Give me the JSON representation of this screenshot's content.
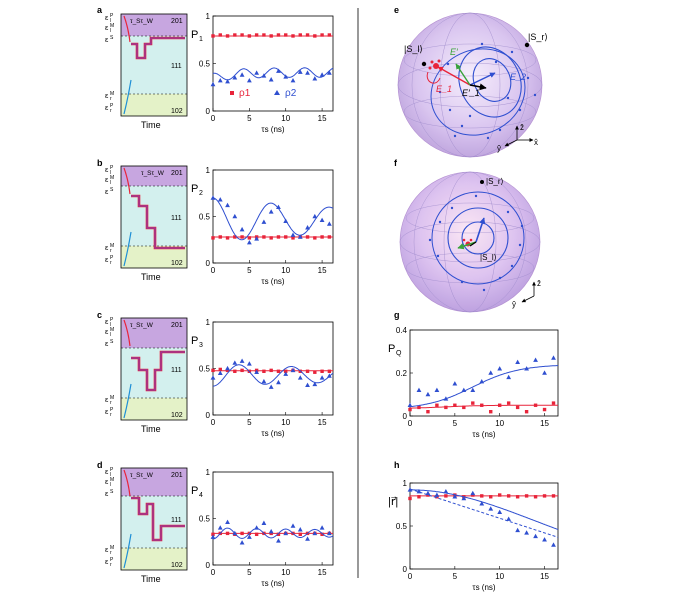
{
  "figure": {
    "panel_labels": {
      "a": "a",
      "b": "b",
      "c": "c",
      "d": "d",
      "e": "e",
      "f": "f",
      "g": "g",
      "h": "h"
    },
    "energy_levels": {
      "eps_l_P": "ε",
      "eps_l_M": "ε",
      "eps_S": "ε",
      "eps_r_M": "ε",
      "eps_r_P": "ε",
      "sub_l": "l",
      "sub_r": "r",
      "sup_P": "P",
      "sup_M": "M",
      "sup_S": "S"
    },
    "state_labels": [
      "201",
      "111",
      "102"
    ],
    "tau_labels": "τ_Sτ_W",
    "time_label": "Time",
    "colors": {
      "red": "#e8243a",
      "blue": "#2f4fd0",
      "purple": "#c7a6e0",
      "teal": "#d3f0ee",
      "green": "#e4f2c8",
      "curve_purple": "#8a3aa8"
    },
    "bloch": {
      "e_labels": {
        "Si": "|S_l⟩",
        "Sr": "|S_r⟩",
        "E1": "E_1",
        "E2": "E_2",
        "E1p": "E′_1",
        "Ep": "E′"
      },
      "axes": {
        "x": "x̂",
        "y": "ŷ",
        "z": "ẑ"
      },
      "f_labels": {
        "Sr": "|S_r⟩",
        "Si": "|S_l⟩"
      }
    }
  },
  "chart_data": [
    {
      "id": "a",
      "type": "scatter",
      "ylabel": "P",
      "ysub": "1",
      "xlabel": "τ_s (ns)",
      "xlim": [
        0,
        16.5
      ],
      "ylim": [
        0,
        1
      ],
      "yticks": [
        0,
        0.5,
        1
      ],
      "xticks": [
        0,
        5,
        10,
        15
      ],
      "series": [
        {
          "name": "ρ1",
          "marker": "square",
          "color": "#e8243a",
          "x": [
            0,
            1,
            2,
            3,
            4,
            5,
            6,
            7,
            8,
            9,
            10,
            11,
            12,
            13,
            14,
            15,
            16
          ],
          "values": [
            0.79,
            0.8,
            0.79,
            0.8,
            0.8,
            0.79,
            0.8,
            0.8,
            0.79,
            0.8,
            0.8,
            0.79,
            0.8,
            0.8,
            0.79,
            0.8,
            0.8
          ],
          "fit": {
            "kind": "const",
            "value": 0.79
          }
        },
        {
          "name": "ρ2",
          "marker": "triangle",
          "color": "#2f4fd0",
          "x": [
            0,
            1,
            2,
            3,
            4,
            5,
            6,
            7,
            8,
            9,
            10,
            11,
            12,
            13,
            14,
            15,
            16
          ],
          "values": [
            0.28,
            0.32,
            0.31,
            0.35,
            0.38,
            0.32,
            0.4,
            0.37,
            0.33,
            0.42,
            0.36,
            0.32,
            0.41,
            0.4,
            0.34,
            0.38,
            0.4
          ],
          "fit": {
            "kind": "osc",
            "a": 0.37,
            "b": 0.05,
            "period": 4.2,
            "phase": 0.0,
            "rise": 0.06,
            "tau": 2.5
          }
        }
      ],
      "legend": [
        "ρ1",
        "ρ2"
      ]
    },
    {
      "id": "b",
      "type": "scatter",
      "ylabel": "P",
      "ysub": "2",
      "xlabel": "τ_s (ns)",
      "xlim": [
        0,
        16.5
      ],
      "ylim": [
        0,
        1
      ],
      "yticks": [
        0,
        0.5,
        1
      ],
      "xticks": [
        0,
        5,
        10,
        15
      ],
      "series": [
        {
          "name": "ρ1",
          "marker": "square",
          "color": "#e8243a",
          "x": [
            0,
            1,
            2,
            3,
            4,
            5,
            6,
            7,
            8,
            9,
            10,
            11,
            12,
            13,
            14,
            15,
            16
          ],
          "values": [
            0.27,
            0.28,
            0.27,
            0.28,
            0.28,
            0.27,
            0.28,
            0.28,
            0.27,
            0.28,
            0.28,
            0.27,
            0.28,
            0.28,
            0.27,
            0.28,
            0.28
          ],
          "fit": {
            "kind": "const",
            "value": 0.28
          }
        },
        {
          "name": "ρ2",
          "marker": "triangle",
          "color": "#2f4fd0",
          "x": [
            0,
            1,
            2,
            3,
            4,
            5,
            6,
            7,
            8,
            9,
            10,
            11,
            12,
            13,
            14,
            15,
            16
          ],
          "values": [
            0.7,
            0.68,
            0.62,
            0.5,
            0.36,
            0.22,
            0.26,
            0.44,
            0.55,
            0.6,
            0.45,
            0.3,
            0.28,
            0.38,
            0.5,
            0.46,
            0.42
          ],
          "fit": {
            "kind": "damped",
            "mean": 0.46,
            "amp": 0.24,
            "period": 8.0,
            "decay": 30,
            "phase": 0.0
          }
        }
      ]
    },
    {
      "id": "c",
      "type": "scatter",
      "ylabel": "P",
      "ysub": "3",
      "xlabel": "τ_s (ns)",
      "xlim": [
        0,
        16.5
      ],
      "ylim": [
        0,
        1
      ],
      "yticks": [
        0,
        0.5,
        1
      ],
      "xticks": [
        0,
        5,
        10,
        15
      ],
      "series": [
        {
          "name": "ρ1",
          "marker": "square",
          "color": "#e8243a",
          "x": [
            0,
            1,
            2,
            3,
            4,
            5,
            6,
            7,
            8,
            9,
            10,
            11,
            12,
            13,
            14,
            15,
            16
          ],
          "values": [
            0.48,
            0.49,
            0.48,
            0.47,
            0.48,
            0.47,
            0.48,
            0.47,
            0.48,
            0.47,
            0.47,
            0.48,
            0.47,
            0.47,
            0.46,
            0.47,
            0.47
          ],
          "fit": {
            "kind": "const",
            "value": 0.475
          }
        },
        {
          "name": "ρ2",
          "marker": "triangle",
          "color": "#2f4fd0",
          "x": [
            0,
            1,
            2,
            3,
            4,
            5,
            6,
            7,
            8,
            9,
            10,
            11,
            12,
            13,
            14,
            15,
            16
          ],
          "values": [
            0.4,
            0.45,
            0.5,
            0.56,
            0.58,
            0.55,
            0.46,
            0.36,
            0.3,
            0.35,
            0.44,
            0.48,
            0.4,
            0.32,
            0.33,
            0.4,
            0.42
          ],
          "fit": {
            "kind": "damped",
            "mean": 0.43,
            "amp": -0.12,
            "period": 7.2,
            "decay": 40,
            "phase": 0.0
          }
        }
      ]
    },
    {
      "id": "d",
      "type": "scatter",
      "ylabel": "P",
      "ysub": "4",
      "xlabel": "τ_s (ns)",
      "xlim": [
        0,
        16.5
      ],
      "ylim": [
        0,
        1
      ],
      "yticks": [
        0,
        0.5,
        1
      ],
      "xticks": [
        0,
        5,
        10,
        15
      ],
      "series": [
        {
          "name": "ρ1",
          "marker": "square",
          "color": "#e8243a",
          "x": [
            0,
            1,
            2,
            3,
            4,
            5,
            6,
            7,
            8,
            9,
            10,
            11,
            12,
            13,
            14,
            15,
            16
          ],
          "values": [
            0.33,
            0.34,
            0.34,
            0.33,
            0.34,
            0.34,
            0.33,
            0.34,
            0.34,
            0.33,
            0.34,
            0.34,
            0.33,
            0.34,
            0.34,
            0.33,
            0.34
          ],
          "fit": {
            "kind": "const",
            "value": 0.34
          }
        },
        {
          "name": "ρ2",
          "marker": "triangle",
          "color": "#2f4fd0",
          "x": [
            0,
            1,
            2,
            3,
            4,
            5,
            6,
            7,
            8,
            9,
            10,
            11,
            12,
            13,
            14,
            15,
            16
          ],
          "values": [
            0.3,
            0.4,
            0.46,
            0.34,
            0.24,
            0.3,
            0.4,
            0.45,
            0.36,
            0.26,
            0.34,
            0.42,
            0.38,
            0.28,
            0.34,
            0.4,
            0.34
          ],
          "fit": {
            "kind": "damped",
            "mean": 0.34,
            "amp": -0.06,
            "period": 4.0,
            "decay": 40,
            "phase": 0.0
          }
        }
      ]
    },
    {
      "id": "g",
      "type": "scatter",
      "ylabel": "P",
      "ysub": "Q",
      "xlabel": "τ_s (ns)",
      "xlim": [
        0,
        16.5
      ],
      "ylim": [
        0,
        0.4
      ],
      "yticks": [
        0,
        0.2,
        0.4
      ],
      "xticks": [
        0,
        5,
        10,
        15
      ],
      "series": [
        {
          "name": "ρ1",
          "marker": "square",
          "color": "#e8243a",
          "x": [
            0,
            1,
            2,
            3,
            4,
            5,
            6,
            7,
            8,
            9,
            10,
            11,
            12,
            13,
            14,
            15,
            16
          ],
          "values": [
            0.03,
            0.04,
            0.02,
            0.05,
            0.04,
            0.05,
            0.04,
            0.06,
            0.05,
            0.02,
            0.05,
            0.06,
            0.04,
            0.02,
            0.05,
            0.03,
            0.06
          ],
          "fit": {
            "kind": "sat",
            "base": 0.035,
            "top": 0.05,
            "x0": 4,
            "w": 2
          }
        },
        {
          "name": "ρ2",
          "marker": "triangle",
          "color": "#2f4fd0",
          "x": [
            0,
            1,
            2,
            3,
            4,
            5,
            6,
            7,
            8,
            9,
            10,
            11,
            12,
            13,
            14,
            15,
            16
          ],
          "values": [
            0.05,
            0.12,
            0.1,
            0.12,
            0.08,
            0.15,
            0.12,
            0.12,
            0.16,
            0.2,
            0.22,
            0.18,
            0.25,
            0.22,
            0.26,
            0.2,
            0.27
          ],
          "fit": {
            "kind": "sat",
            "base": 0.03,
            "top": 0.24,
            "x0": 7,
            "w": 2.6
          }
        }
      ]
    },
    {
      "id": "h",
      "type": "scatter",
      "ylabel": "|r⃗|",
      "ysub": "",
      "xlabel": "τ_s (ns)",
      "xlim": [
        0,
        16.5
      ],
      "ylim": [
        0,
        1
      ],
      "yticks": [
        0,
        0.5,
        1
      ],
      "xticks": [
        0,
        5,
        10,
        15
      ],
      "series": [
        {
          "name": "ρ1",
          "marker": "square",
          "color": "#e8243a",
          "x": [
            0,
            1,
            2,
            3,
            4,
            5,
            6,
            7,
            8,
            9,
            10,
            11,
            12,
            13,
            14,
            15,
            16
          ],
          "values": [
            0.82,
            0.84,
            0.86,
            0.84,
            0.85,
            0.86,
            0.84,
            0.86,
            0.85,
            0.84,
            0.86,
            0.85,
            0.84,
            0.85,
            0.84,
            0.85,
            0.85
          ],
          "fit": {
            "kind": "const",
            "value": 0.85
          }
        },
        {
          "name": "ρ2",
          "marker": "triangle",
          "color": "#2f4fd0",
          "x": [
            0,
            1,
            2,
            3,
            4,
            5,
            6,
            7,
            8,
            9,
            10,
            11,
            12,
            13,
            14,
            15,
            16
          ],
          "values": [
            0.92,
            0.9,
            0.88,
            0.86,
            0.9,
            0.84,
            0.82,
            0.88,
            0.76,
            0.7,
            0.66,
            0.58,
            0.45,
            0.42,
            0.38,
            0.34,
            0.28
          ],
          "fit": {
            "kind": "gauss",
            "a": 0.92,
            "tau": 14
          },
          "fit2": {
            "kind": "line",
            "a": 0.93,
            "slope": -0.034
          }
        }
      ]
    }
  ]
}
